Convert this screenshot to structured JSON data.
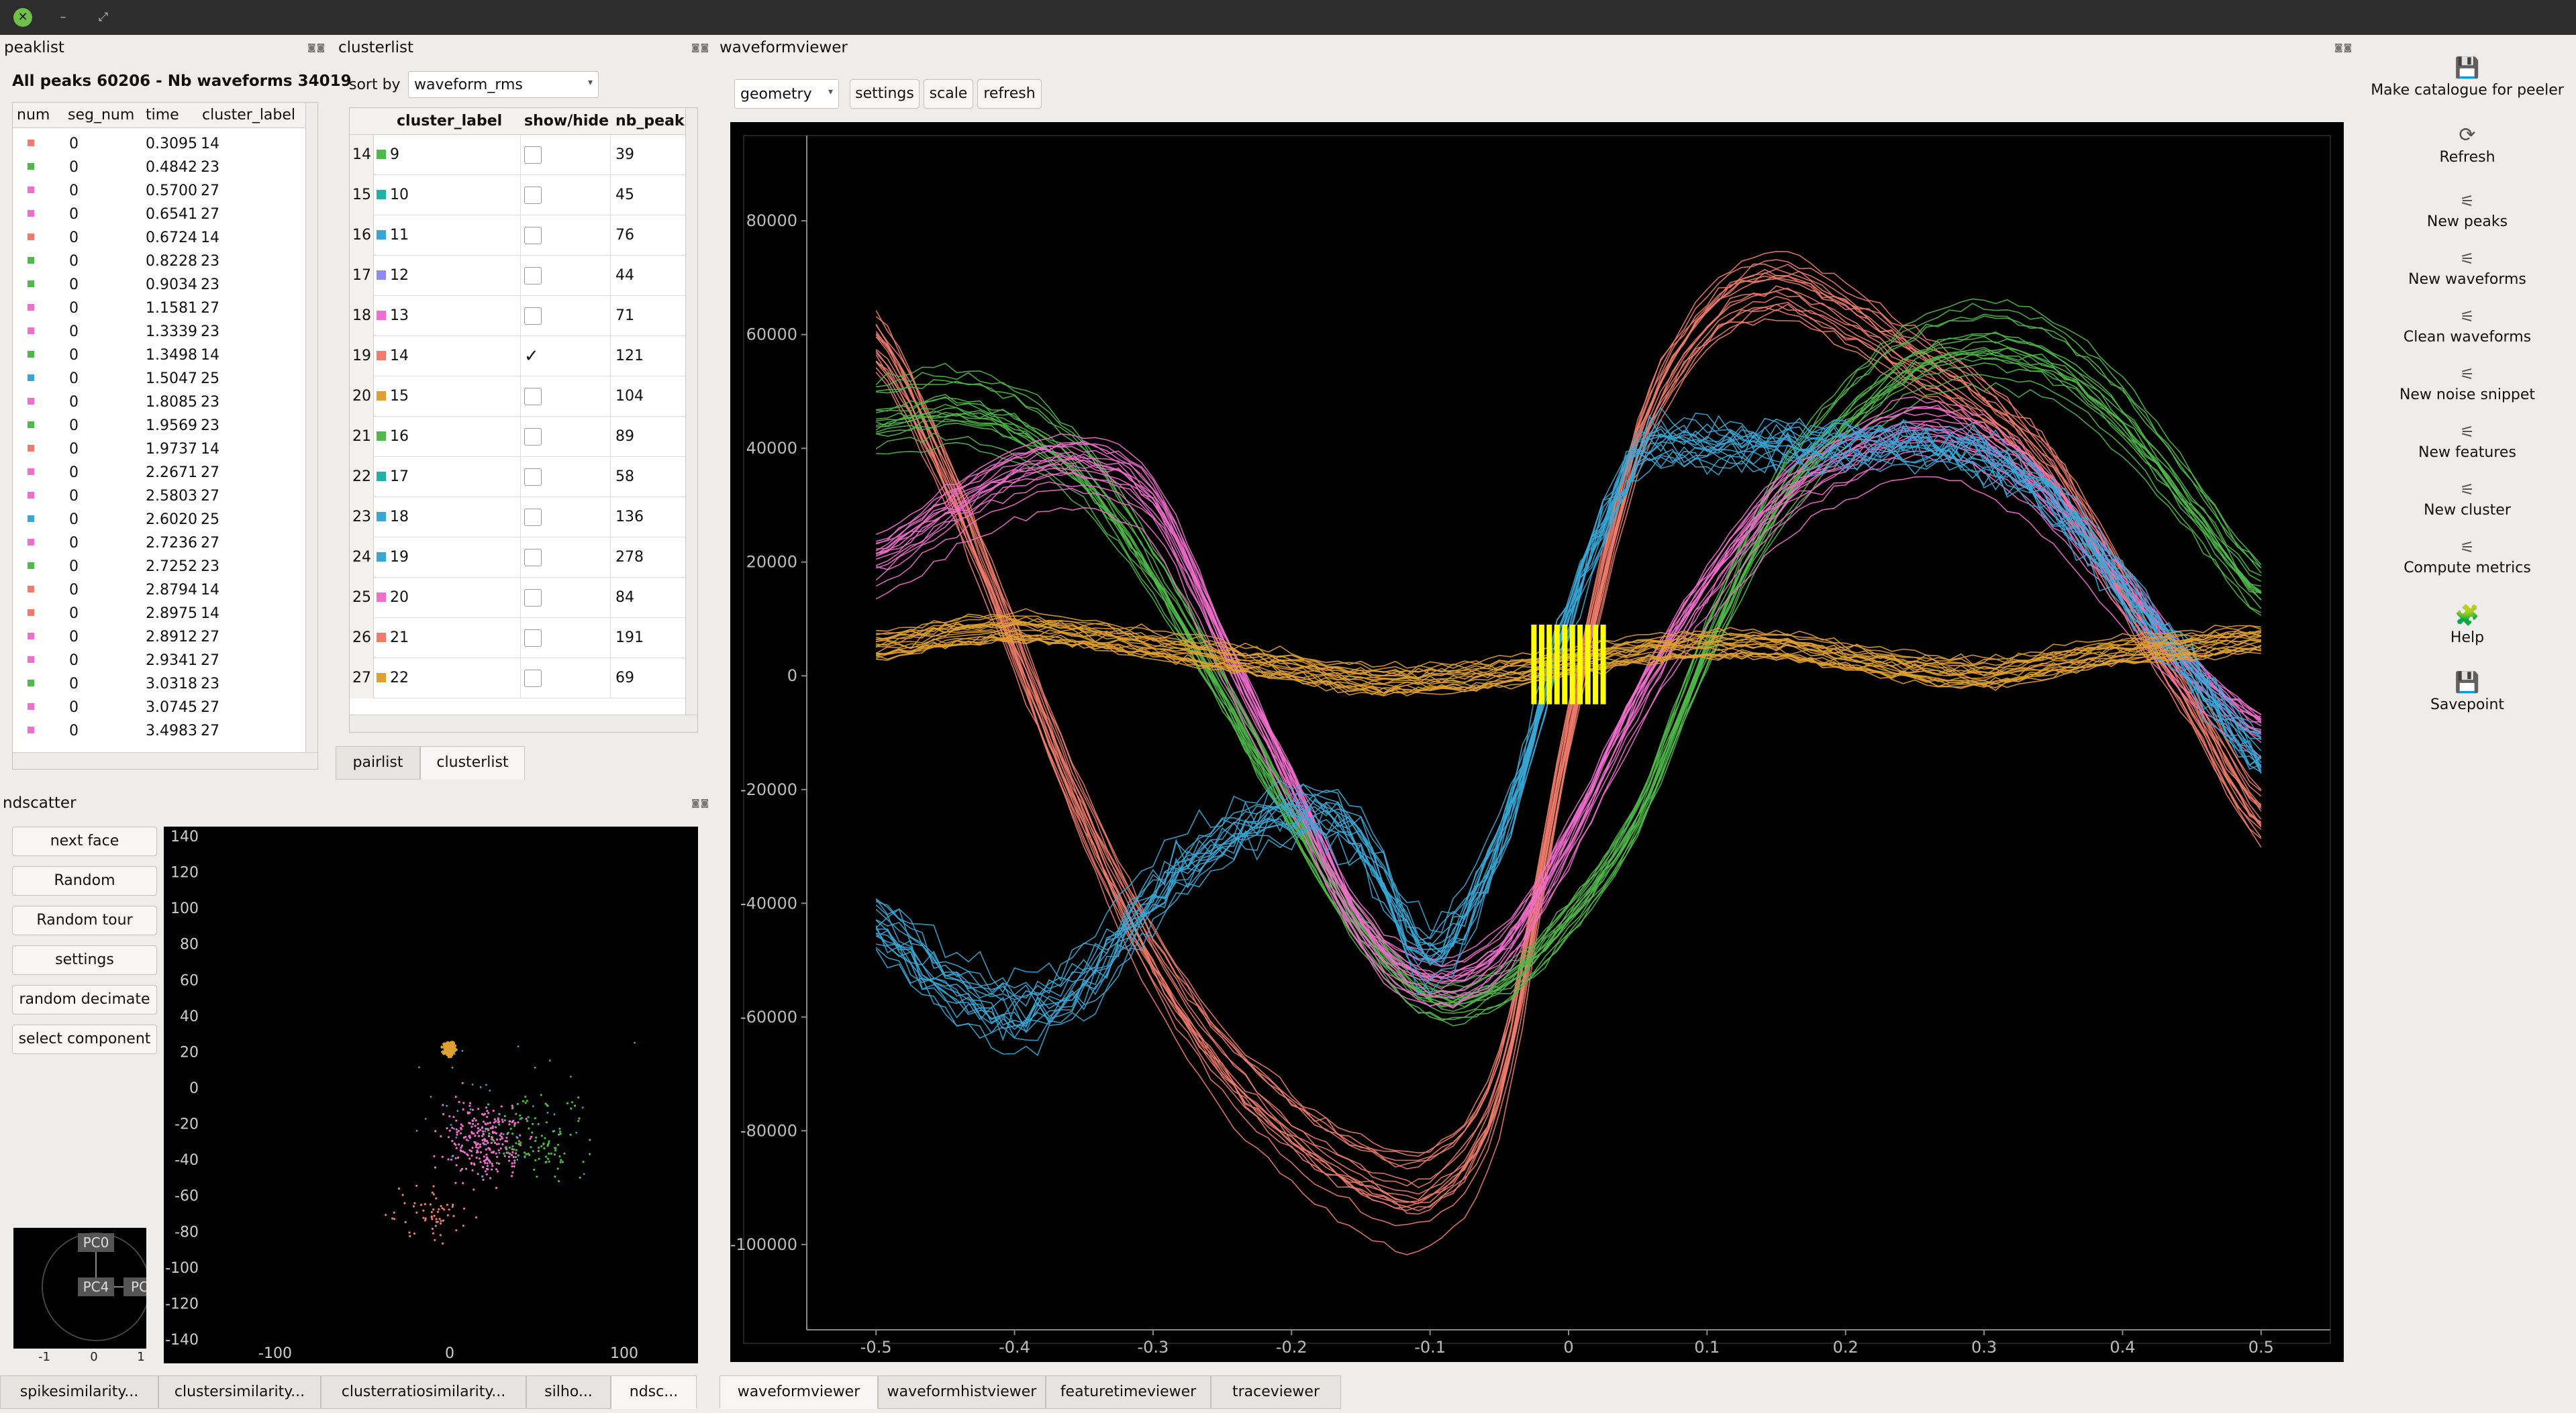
{
  "colors": {
    "red": "#f07c6b",
    "green": "#4fb949",
    "pink": "#f06ecd",
    "cyan": "#38a7d6",
    "purple": "#8c8cf0",
    "orange": "#e0a030",
    "teal": "#20b2aa",
    "yellow": "#ffff00"
  },
  "window": {
    "close": "✕",
    "min": "–",
    "max": "⤢"
  },
  "peaklist": {
    "title": "peaklist",
    "summary": "All peaks 60206 - Nb waveforms 34019",
    "columns": [
      "num",
      "seg_num",
      "time",
      "cluster_label"
    ],
    "rows": [
      {
        "c": "red",
        "seg": "0",
        "time": "0.3095",
        "label": "14"
      },
      {
        "c": "green",
        "seg": "0",
        "time": "0.4842",
        "label": "23"
      },
      {
        "c": "pink",
        "seg": "0",
        "time": "0.5700",
        "label": "27"
      },
      {
        "c": "pink",
        "seg": "0",
        "time": "0.6541",
        "label": "27"
      },
      {
        "c": "red",
        "seg": "0",
        "time": "0.6724",
        "label": "14"
      },
      {
        "c": "green",
        "seg": "0",
        "time": "0.8228",
        "label": "23"
      },
      {
        "c": "green",
        "seg": "0",
        "time": "0.9034",
        "label": "23"
      },
      {
        "c": "pink",
        "seg": "0",
        "time": "1.1581",
        "label": "27"
      },
      {
        "c": "pink",
        "seg": "0",
        "time": "1.3339",
        "label": "23"
      },
      {
        "c": "green",
        "seg": "0",
        "time": "1.3498",
        "label": "14"
      },
      {
        "c": "cyan",
        "seg": "0",
        "time": "1.5047",
        "label": "25"
      },
      {
        "c": "pink",
        "seg": "0",
        "time": "1.8085",
        "label": "23"
      },
      {
        "c": "green",
        "seg": "0",
        "time": "1.9569",
        "label": "23"
      },
      {
        "c": "red",
        "seg": "0",
        "time": "1.9737",
        "label": "14"
      },
      {
        "c": "pink",
        "seg": "0",
        "time": "2.2671",
        "label": "27"
      },
      {
        "c": "pink",
        "seg": "0",
        "time": "2.5803",
        "label": "27"
      },
      {
        "c": "cyan",
        "seg": "0",
        "time": "2.6020",
        "label": "25"
      },
      {
        "c": "pink",
        "seg": "0",
        "time": "2.7236",
        "label": "27"
      },
      {
        "c": "green",
        "seg": "0",
        "time": "2.7252",
        "label": "23"
      },
      {
        "c": "red",
        "seg": "0",
        "time": "2.8794",
        "label": "14"
      },
      {
        "c": "red",
        "seg": "0",
        "time": "2.8975",
        "label": "14"
      },
      {
        "c": "pink",
        "seg": "0",
        "time": "2.8912",
        "label": "27"
      },
      {
        "c": "pink",
        "seg": "0",
        "time": "2.9341",
        "label": "27"
      },
      {
        "c": "green",
        "seg": "0",
        "time": "3.0318",
        "label": "23"
      },
      {
        "c": "pink",
        "seg": "0",
        "time": "3.0745",
        "label": "27"
      },
      {
        "c": "pink",
        "seg": "0",
        "time": "3.4983",
        "label": "27"
      }
    ]
  },
  "clusterlist": {
    "title": "clusterlist",
    "sort_label": "sort by",
    "sort_value": "waveform_rms",
    "columns": [
      "cluster_label",
      "show/hide",
      "nb_peak"
    ],
    "rows": [
      {
        "idx": "14",
        "c": "green",
        "label": "9",
        "shown": false,
        "n": "39"
      },
      {
        "idx": "15",
        "c": "teal",
        "label": "10",
        "shown": false,
        "n": "45"
      },
      {
        "idx": "16",
        "c": "cyan",
        "label": "11",
        "shown": false,
        "n": "76"
      },
      {
        "idx": "17",
        "c": "purple",
        "label": "12",
        "shown": false,
        "n": "44"
      },
      {
        "idx": "18",
        "c": "pink",
        "label": "13",
        "shown": false,
        "n": "71"
      },
      {
        "idx": "19",
        "c": "red",
        "label": "14",
        "shown": true,
        "n": "121"
      },
      {
        "idx": "20",
        "c": "orange",
        "label": "15",
        "shown": false,
        "n": "104"
      },
      {
        "idx": "21",
        "c": "green",
        "label": "16",
        "shown": false,
        "n": "89"
      },
      {
        "idx": "22",
        "c": "teal",
        "label": "17",
        "shown": false,
        "n": "58"
      },
      {
        "idx": "23",
        "c": "cyan",
        "label": "18",
        "shown": false,
        "n": "136"
      },
      {
        "idx": "24",
        "c": "cyan",
        "label": "19",
        "shown": false,
        "n": "278"
      },
      {
        "idx": "25",
        "c": "pink",
        "label": "20",
        "shown": false,
        "n": "84"
      },
      {
        "idx": "26",
        "c": "red",
        "label": "21",
        "shown": false,
        "n": "191"
      },
      {
        "idx": "27",
        "c": "orange",
        "label": "22",
        "shown": false,
        "n": "69"
      }
    ],
    "check": "✓",
    "tabs": [
      "pairlist",
      "clusterlist"
    ]
  },
  "ndscatter": {
    "title": "ndscatter",
    "buttons": [
      "next face",
      "Random",
      "Random tour",
      "settings",
      "random decimate",
      "select component"
    ],
    "yticks": [
      "140",
      "120",
      "100",
      "80",
      "60",
      "40",
      "20",
      "0",
      "-20",
      "-40",
      "-60",
      "-80",
      "-100",
      "-120",
      "-140"
    ],
    "xticks": [
      "-100",
      "0",
      "100"
    ],
    "mini": {
      "labels": [
        "PC0",
        "PC4",
        "PC"
      ],
      "xticks": [
        "-1",
        "0",
        "1"
      ]
    }
  },
  "waveformviewer": {
    "title": "waveformviewer",
    "mode": "geometry",
    "buttons": [
      "settings",
      "scale",
      "refresh"
    ]
  },
  "chart_data": {
    "type": "line",
    "title": "",
    "xlabel": "",
    "ylabel": "",
    "xlim": [
      -0.55,
      0.55
    ],
    "ylim": [
      -115000,
      95000
    ],
    "xticks": [
      "-0.5",
      "-0.4",
      "-0.3",
      "-0.2",
      "-0.1",
      "0",
      "0.1",
      "0.2",
      "0.3",
      "0.4",
      "0.5"
    ],
    "yticks": [
      "80000",
      "60000",
      "40000",
      "20000",
      "0",
      "-20000",
      "-40000",
      "-60000",
      "-80000",
      "-100000"
    ],
    "grid": false,
    "x": [
      -0.5,
      -0.45,
      -0.4,
      -0.35,
      -0.3,
      -0.25,
      -0.2,
      -0.15,
      -0.1,
      -0.05,
      0,
      0.05,
      0.1,
      0.15,
      0.2,
      0.25,
      0.3,
      0.35,
      0.4,
      0.45,
      0.5
    ],
    "series": [
      {
        "color": "red",
        "values": [
          58000,
          35000,
          5000,
          -25000,
          -50000,
          -68000,
          -80000,
          -88000,
          -90000,
          -72000,
          -10000,
          40000,
          62000,
          68000,
          63000,
          55000,
          47000,
          35000,
          15000,
          -5000,
          -25000
        ]
      },
      {
        "color": "green",
        "values": [
          45000,
          47000,
          44000,
          35000,
          18000,
          -3000,
          -25000,
          -45000,
          -57000,
          -55000,
          -43000,
          -25000,
          5000,
          30000,
          45000,
          55000,
          58000,
          55000,
          45000,
          30000,
          15000
        ]
      },
      {
        "color": "pink",
        "values": [
          20000,
          28000,
          35000,
          37000,
          30000,
          5000,
          -20000,
          -45000,
          -55000,
          -50000,
          -30000,
          -5000,
          15000,
          30000,
          38000,
          43000,
          40000,
          30000,
          15000,
          0,
          -10000
        ]
      },
      {
        "color": "cyan",
        "values": [
          -45000,
          -55000,
          -60000,
          -55000,
          -40000,
          -30000,
          -25000,
          -30000,
          -50000,
          -30000,
          10000,
          38000,
          40000,
          40000,
          40000,
          40000,
          38000,
          30000,
          15000,
          0,
          -15000
        ]
      },
      {
        "color": "orange",
        "values": [
          5000,
          7000,
          8000,
          7000,
          5000,
          3000,
          1000,
          -1000,
          -1000,
          0,
          2000,
          4000,
          5000,
          5000,
          3000,
          1000,
          0,
          2000,
          4000,
          5000,
          6000
        ]
      }
    ],
    "markers": {
      "color": "yellow",
      "x": [
        -0.025,
        0.025
      ],
      "y": [
        -3000,
        5000
      ]
    }
  },
  "toolbar": {
    "items": [
      {
        "label": "Make catalogue for peeler",
        "icon": "save-icon",
        "glyph": "💾"
      },
      {
        "label": "Refresh",
        "icon": "refresh-icon",
        "glyph": "⟳"
      },
      {
        "label": "New peaks",
        "icon": "sliders-icon",
        "glyph": "⚟"
      },
      {
        "label": "New waveforms",
        "icon": "sliders-icon",
        "glyph": "⚟"
      },
      {
        "label": "Clean waveforms",
        "icon": "sliders-icon",
        "glyph": "⚟"
      },
      {
        "label": "New noise snippet",
        "icon": "sliders-icon",
        "glyph": "⚟"
      },
      {
        "label": "New features",
        "icon": "sliders-icon",
        "glyph": "⚟"
      },
      {
        "label": "New cluster",
        "icon": "sliders-icon",
        "glyph": "⚟"
      },
      {
        "label": "Compute metrics",
        "icon": "sliders-icon",
        "glyph": "⚟"
      },
      {
        "label": "Help",
        "icon": "help-icon",
        "glyph": "🧩"
      },
      {
        "label": "Savepoint",
        "icon": "save-icon",
        "glyph": "💾"
      }
    ]
  },
  "bottom_tabs_left": [
    "spikesimilarity...",
    "clustersimilarity...",
    "clusterratiosimilarity...",
    "silho...",
    "ndsc..."
  ],
  "bottom_tabs_right": [
    "waveformviewer",
    "waveformhistviewer",
    "featuretimeviewer",
    "traceviewer"
  ]
}
